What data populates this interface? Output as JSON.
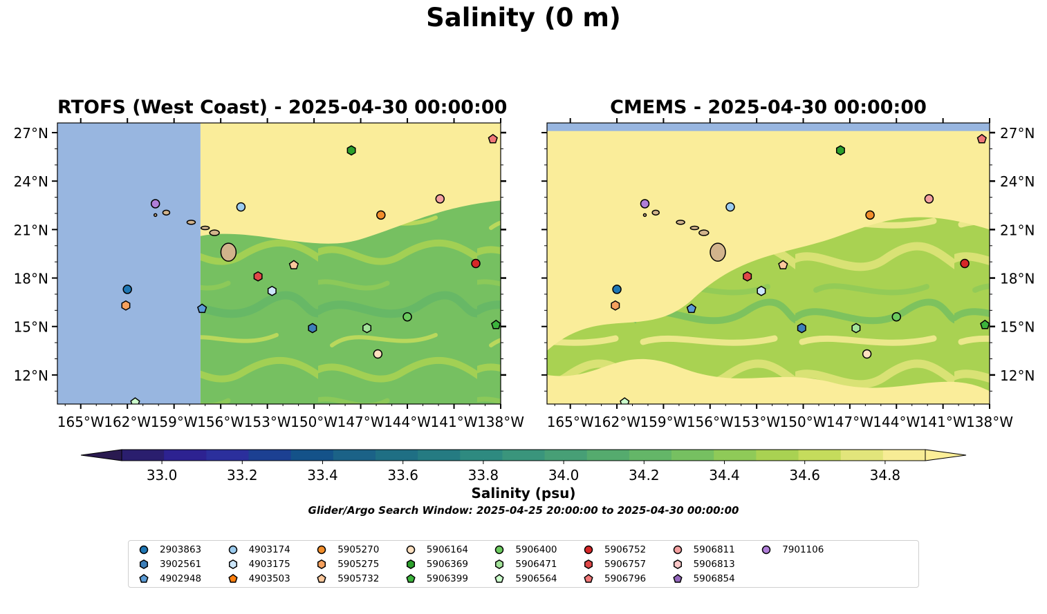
{
  "title": "Salinity (0 m)",
  "panels": [
    {
      "title": "RTOFS (West Coast) - 2025-04-30 00:00:00",
      "lat_axis_side": "left",
      "partial_coverage": true
    },
    {
      "title": "CMEMS - 2025-04-30 00:00:00",
      "lat_axis_side": "right",
      "partial_coverage": false
    }
  ],
  "map_extent": {
    "lon": [
      -166.5,
      -138
    ],
    "lat": [
      10.2,
      27.6
    ]
  },
  "lon_ticks": [
    "165°W",
    "162°W",
    "159°W",
    "156°W",
    "153°W",
    "150°W",
    "147°W",
    "144°W",
    "141°W",
    "138°W"
  ],
  "lon_tick_values": [
    -165,
    -162,
    -159,
    -156,
    -153,
    -150,
    -147,
    -144,
    -141,
    -138
  ],
  "lat_ticks": [
    "27°N",
    "24°N",
    "21°N",
    "18°N",
    "15°N",
    "12°N"
  ],
  "lat_tick_values": [
    27,
    24,
    21,
    18,
    15,
    12
  ],
  "colorbar": {
    "label": "Salinity (psu)",
    "min": 32.9,
    "max": 34.9,
    "extend": "both",
    "ticks": [
      "33.0",
      "33.2",
      "33.4",
      "33.6",
      "33.8",
      "34.0",
      "34.2",
      "34.4",
      "34.6",
      "34.8"
    ],
    "tick_values": [
      33.0,
      33.2,
      33.4,
      33.6,
      33.8,
      34.0,
      34.2,
      34.4,
      34.6,
      34.8
    ],
    "colors": [
      "#2a1e6e",
      "#2d2291",
      "#2b2f9c",
      "#1c4092",
      "#145289",
      "#1b6287",
      "#1f6f84",
      "#257b82",
      "#2e8a80",
      "#3a957c",
      "#479f76",
      "#55ab6e",
      "#64b668",
      "#76c061",
      "#8fca58",
      "#a9d252",
      "#c5dc5c",
      "#e2e57b",
      "#f7ec95"
    ],
    "under_color": "#2a1a50",
    "over_color": "#fcef98"
  },
  "colors": {
    "nodata": "#98b6e0",
    "land": "#d2b48c",
    "high_salinity": "#faed9a"
  },
  "search_window": "Glider/Argo Search Window: 2025-04-25 20:00:00 to 2025-04-30 00:00:00",
  "floats": [
    {
      "id": "2903863",
      "marker": "circle",
      "color": "#1f77b4",
      "lon": -162.0,
      "lat": 17.3
    },
    {
      "id": "3902561",
      "marker": "hexagon",
      "color": "#3e7fb9",
      "lon": -150.1,
      "lat": 14.9
    },
    {
      "id": "4902948",
      "marker": "pentagon",
      "color": "#5b9bd5",
      "lon": -157.2,
      "lat": 16.1
    },
    {
      "id": "4903174",
      "marker": "circle",
      "color": "#9cccef",
      "lon": -154.7,
      "lat": 22.4
    },
    {
      "id": "4903175",
      "marker": "hexagon",
      "color": "#cce6fa",
      "lon": -152.7,
      "lat": 17.2
    },
    {
      "id": "4903503",
      "marker": "pentagon",
      "color": "#ff7f0e",
      "lon": null,
      "lat": null
    },
    {
      "id": "5905270",
      "marker": "circle",
      "color": "#f28e2b",
      "lon": -145.7,
      "lat": 21.9
    },
    {
      "id": "5905275",
      "marker": "hexagon",
      "color": "#f6a15e",
      "lon": -162.1,
      "lat": 16.3
    },
    {
      "id": "5905732",
      "marker": "pentagon",
      "color": "#fcc89c",
      "lon": -151.3,
      "lat": 18.8
    },
    {
      "id": "5906164",
      "marker": "circle",
      "color": "#fde0c0",
      "lon": -145.9,
      "lat": 13.3
    },
    {
      "id": "5906369",
      "marker": "hexagon",
      "color": "#2ca02c",
      "lon": -147.6,
      "lat": 25.9
    },
    {
      "id": "5906399",
      "marker": "pentagon",
      "color": "#3cb43c",
      "lon": -138.3,
      "lat": 15.1
    },
    {
      "id": "5906400",
      "marker": "circle",
      "color": "#6ccb5f",
      "lon": -144.0,
      "lat": 15.6
    },
    {
      "id": "5906471",
      "marker": "hexagon",
      "color": "#a3e39a",
      "lon": -146.6,
      "lat": 14.9
    },
    {
      "id": "5906564",
      "marker": "pentagon",
      "color": "#ccffcc",
      "lon": -161.5,
      "lat": 10.3
    },
    {
      "id": "5906752",
      "marker": "circle",
      "color": "#d62728",
      "lon": -139.6,
      "lat": 18.9
    },
    {
      "id": "5906757",
      "marker": "hexagon",
      "color": "#e04848",
      "lon": -153.6,
      "lat": 18.1
    },
    {
      "id": "5906796",
      "marker": "pentagon",
      "color": "#f07878",
      "lon": -138.5,
      "lat": 26.6
    },
    {
      "id": "5906811",
      "marker": "circle",
      "color": "#f4a0a0",
      "lon": -141.9,
      "lat": 22.9
    },
    {
      "id": "5906813",
      "marker": "hexagon",
      "color": "#fcc8c8",
      "lon": null,
      "lat": null
    },
    {
      "id": "5906854",
      "marker": "pentagon",
      "color": "#9467bd",
      "lon": null,
      "lat": null
    },
    {
      "id": "7901106",
      "marker": "circle",
      "color": "#b07ed8",
      "lon": -160.2,
      "lat": 22.6
    }
  ]
}
